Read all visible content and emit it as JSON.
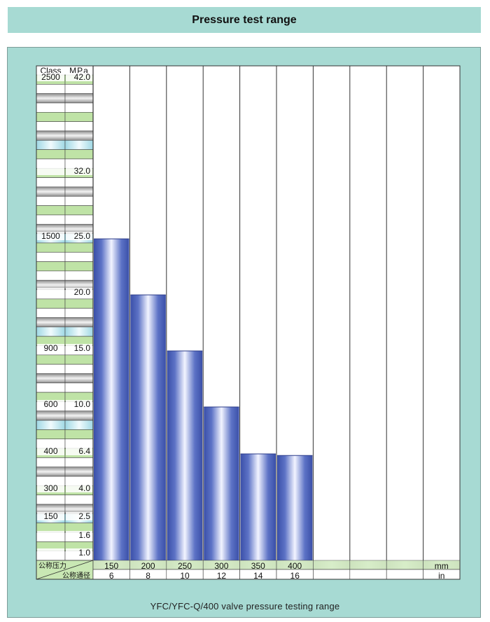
{
  "header": {
    "title": "Pressure test range"
  },
  "caption": "YFC/YFC-Q/400 valve pressure testing range",
  "scale": {
    "col1_header": "Class",
    "col2_header": "MPa",
    "labels": [
      {
        "class": "2500",
        "mpa": "42.0"
      },
      {
        "class": "",
        "mpa": "32.0"
      },
      {
        "class": "1500",
        "mpa": "25.0"
      },
      {
        "class": "",
        "mpa": "20.0"
      },
      {
        "class": "900",
        "mpa": "15.0"
      },
      {
        "class": "600",
        "mpa": "10.0"
      },
      {
        "class": "400",
        "mpa": "6.4"
      },
      {
        "class": "300",
        "mpa": "4.0"
      },
      {
        "class": "150",
        "mpa": "2.5"
      },
      {
        "class": "",
        "mpa": "1.6"
      },
      {
        "class": "",
        "mpa": "1.0"
      }
    ]
  },
  "footer": {
    "pressure_label": "公称压力",
    "diameter_label": "公称通径",
    "unit_mm": "mm",
    "unit_in": "in"
  },
  "colors": {
    "panel": "#a7dad3",
    "bar_dark": "#3a4fa8",
    "bar_light": "#f2f4ff",
    "row_green": "#bfe3a6",
    "row_cyan": "#c6ecf2",
    "row_gray": "#a9a9a9"
  },
  "chart_data": {
    "type": "bar",
    "categories": [
      "150",
      "200",
      "250",
      "300",
      "350",
      "400"
    ],
    "secondary_categories": [
      "6",
      "8",
      "10",
      "12",
      "14",
      "16"
    ],
    "values": [
      25.0,
      20.0,
      15.0,
      10.0,
      6.4,
      6.3
    ],
    "ylabel": "MPa",
    "xlabel_top": "mm",
    "xlabel_bottom": "in",
    "total_columns": 10,
    "grid": true
  }
}
